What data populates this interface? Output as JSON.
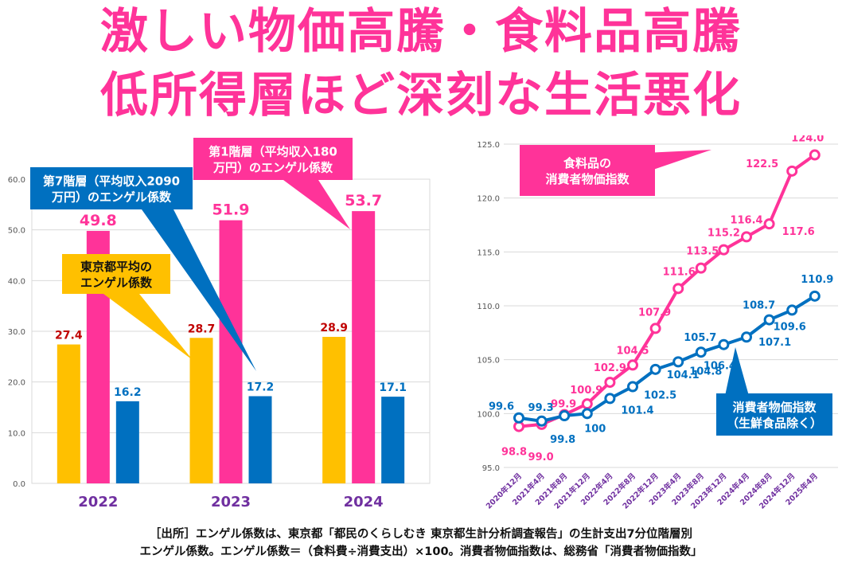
{
  "title": {
    "line1": "激しい物価高騰・食料品高騰",
    "line2": "低所得層ほど深刻な生活悪化"
  },
  "colors": {
    "pink": "#ff3399",
    "blue": "#0070c0",
    "yellow": "#ffc000",
    "dark_red": "#c00000",
    "purple": "#7030a0"
  },
  "callouts": {
    "tokyo_avg": "東京都平均の\nエンゲル係数",
    "tier7": "第7階層（平均収入2090\n万円）のエンゲル係数",
    "tier1": "第1階層（平均収入180\n万円）のエンゲル係数",
    "food_cpi": "食料品の\n消費者物価指数",
    "core_cpi": "消費者物価指数\n（生鮮食品除く）"
  },
  "chart_data": [
    {
      "type": "bar",
      "categories": [
        "2022",
        "2023",
        "2024"
      ],
      "ylim": [
        0,
        60
      ],
      "yticks": [
        "0.0",
        "10.0",
        "20.0",
        "30.0",
        "40.0",
        "50.0",
        "60.0"
      ],
      "grid": true,
      "series": [
        {
          "name": "東京都平均のエンゲル係数",
          "color": "#ffc000",
          "label_color": "#c00000",
          "values": [
            27.4,
            28.7,
            28.9
          ],
          "labels": [
            "27.4",
            "28.7",
            "28.9"
          ]
        },
        {
          "name": "第1階層（平均収入180万円）のエンゲル係数",
          "color": "#ff3399",
          "label_color": "#ff3399",
          "values": [
            49.8,
            51.9,
            53.7
          ],
          "labels": [
            "49.8",
            "51.9",
            "53.7"
          ]
        },
        {
          "name": "第7階層（平均収入2090万円）のエンゲル係数",
          "color": "#0070c0",
          "label_color": "#0070c0",
          "values": [
            16.2,
            17.2,
            17.1
          ],
          "labels": [
            "16.2",
            "17.2",
            "17.1"
          ]
        }
      ]
    },
    {
      "type": "line",
      "categories": [
        "2020年12月",
        "2021年4月",
        "2021年8月",
        "2021年12月",
        "2022年4月",
        "2022年8月",
        "2022年12月",
        "2023年4月",
        "2023年8月",
        "2023年12月",
        "2024年4月",
        "2024年8月",
        "2024年12月",
        "2025年4月"
      ],
      "ylim": [
        95,
        125
      ],
      "yticks": [
        "95.0",
        "100.0",
        "105.0",
        "110.0",
        "115.0",
        "120.0",
        "125.0"
      ],
      "grid": true,
      "series": [
        {
          "name": "食料品の消費者物価指数",
          "color": "#ff3399",
          "values": [
            98.8,
            99.0,
            99.9,
            100.9,
            102.9,
            104.5,
            107.9,
            111.6,
            113.5,
            115.2,
            116.4,
            117.6,
            122.5,
            124.0
          ],
          "labels": [
            "98.8",
            "99.0",
            "99.9",
            "100.9",
            "102.9",
            "104.5",
            "107.9",
            "111.6",
            "113.5",
            "115.2",
            "116.4",
            "117.6",
            "122.5",
            "124.0"
          ]
        },
        {
          "name": "消費者物価指数（生鮮食品除く）",
          "color": "#0070c0",
          "values": [
            99.6,
            99.3,
            99.8,
            100.0,
            101.4,
            102.5,
            104.1,
            104.8,
            105.7,
            106.4,
            107.1,
            108.7,
            109.6,
            110.9
          ],
          "labels": [
            "99.6",
            "99.3",
            "99.8",
            "100",
            "101.4",
            "102.5",
            "104.1",
            "104.8",
            "105.7",
            "106.4",
            "107.1",
            "108.7",
            "109.6",
            "110.9"
          ]
        }
      ]
    }
  ],
  "source": {
    "line1": "［出所］エンゲル係数は、東京都「都民のくらしむき 東京都生計分析調査報告」の生計支出7分位階層別",
    "line2": "エンゲル係数。エンゲル係数＝（食料費÷消費支出）×100。消費者物価指数は、総務省「消費者物価指数」"
  }
}
